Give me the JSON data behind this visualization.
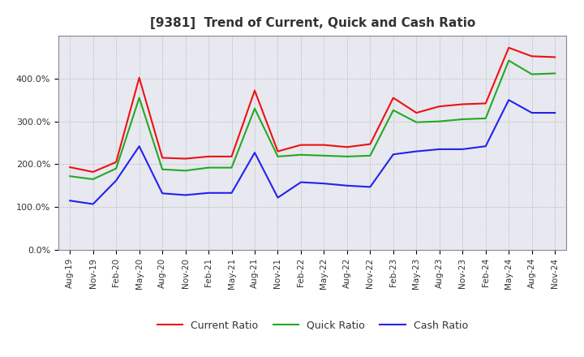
{
  "title": "[9381]  Trend of Current, Quick and Cash Ratio",
  "x_labels": [
    "Aug-19",
    "Nov-19",
    "Feb-20",
    "May-20",
    "Aug-20",
    "Nov-20",
    "Feb-21",
    "May-21",
    "Aug-21",
    "Nov-21",
    "Feb-22",
    "May-22",
    "Aug-22",
    "Nov-22",
    "Feb-23",
    "May-23",
    "Aug-23",
    "Nov-23",
    "Feb-24",
    "May-24",
    "Aug-24",
    "Nov-24"
  ],
  "current_ratio": [
    1.93,
    1.82,
    2.05,
    4.02,
    2.15,
    2.13,
    2.18,
    2.18,
    3.72,
    2.3,
    2.45,
    2.45,
    2.4,
    2.47,
    3.55,
    3.2,
    3.35,
    3.4,
    3.42,
    4.72,
    4.52,
    4.5
  ],
  "quick_ratio": [
    1.72,
    1.65,
    1.9,
    3.55,
    1.88,
    1.85,
    1.92,
    1.92,
    3.3,
    2.18,
    2.22,
    2.2,
    2.18,
    2.2,
    3.26,
    2.98,
    3.0,
    3.05,
    3.07,
    4.42,
    4.1,
    4.12
  ],
  "cash_ratio": [
    1.15,
    1.07,
    1.62,
    2.42,
    1.32,
    1.28,
    1.33,
    1.33,
    2.27,
    1.22,
    1.58,
    1.55,
    1.5,
    1.47,
    2.23,
    2.3,
    2.35,
    2.35,
    2.42,
    3.5,
    3.2,
    3.2
  ],
  "current_color": "#EE1111",
  "quick_color": "#22AA22",
  "cash_color": "#2222EE",
  "ylim": [
    0,
    5.0
  ],
  "yticks": [
    0.0,
    1.0,
    2.0,
    3.0,
    4.0
  ],
  "ytick_labels": [
    "0.0%",
    "100.0%",
    "200.0%",
    "300.0%",
    "400.0%"
  ],
  "legend_labels": [
    "Current Ratio",
    "Quick Ratio",
    "Cash Ratio"
  ],
  "background_color": "#ffffff",
  "plot_bg_color": "#e8e8f0",
  "grid_color": "#aaaaaa",
  "line_width": 1.5,
  "title_color": "#333333",
  "title_fontsize": 11
}
